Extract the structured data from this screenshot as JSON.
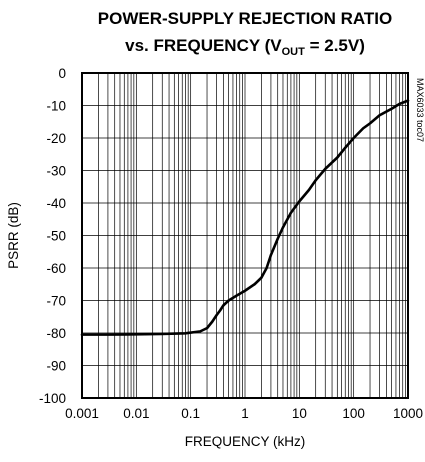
{
  "chart_data": {
    "type": "line",
    "title": {
      "line1": "POWER-SUPPLY REJECTION RATIO",
      "line2_pre": "vs. FREQUENCY (V",
      "line2_sub": "OUT",
      "line2_post": " = 2.5V)"
    },
    "xlabel": "FREQUENCY (kHz)",
    "ylabel": "PSRR (dB)",
    "x_scale": "log",
    "xlim": [
      0.001,
      1000
    ],
    "ylim": [
      -100,
      0
    ],
    "x_ticks": [
      0.001,
      0.01,
      0.1,
      1,
      10,
      100,
      1000
    ],
    "x_tick_labels": [
      "0.001",
      "0.01",
      "0.1",
      "1",
      "10",
      "100",
      "1000"
    ],
    "y_ticks": [
      0,
      -10,
      -20,
      -30,
      -40,
      -50,
      -60,
      -70,
      -80,
      -90,
      -100
    ],
    "y_tick_labels": [
      "0",
      "-10",
      "-20",
      "-30",
      "-40",
      "-50",
      "-60",
      "-70",
      "-80",
      "-90",
      "-100"
    ],
    "grid": true,
    "watermark": "MAX6033 toc07",
    "series": [
      {
        "x": [
          0.001,
          0.003,
          0.01,
          0.03,
          0.08,
          0.15,
          0.2,
          0.25,
          0.3,
          0.35,
          0.4,
          0.5,
          0.7,
          1.0,
          1.5,
          2.0,
          2.5,
          3.0,
          4.0,
          5.0,
          7.0,
          10,
          15,
          20,
          30,
          50,
          70,
          100,
          150,
          200,
          300,
          500,
          700,
          1000
        ],
        "y": [
          -80.5,
          -80.5,
          -80.4,
          -80.3,
          -80.1,
          -79.5,
          -78.5,
          -76.5,
          -74.5,
          -73,
          -71.5,
          -70,
          -68.5,
          -67,
          -65,
          -63,
          -60,
          -56,
          -51,
          -47.5,
          -43,
          -39.5,
          -36,
          -33,
          -29.5,
          -26,
          -23,
          -20,
          -17,
          -15.5,
          -13,
          -11,
          -9.5,
          -8.5
        ]
      }
    ]
  }
}
